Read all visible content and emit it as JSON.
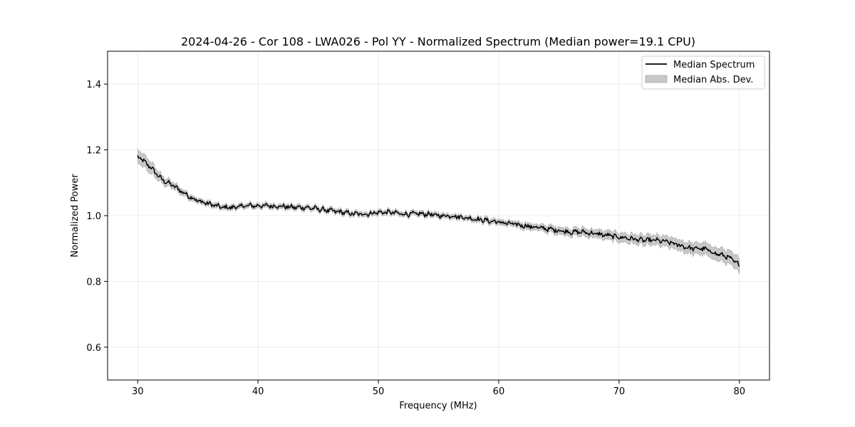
{
  "chart_data": {
    "type": "line",
    "title": "2024-04-26 - Cor 108 - LWA026 - Pol YY - Normalized Spectrum (Median power=19.1 CPU)",
    "xlabel": "Frequency (MHz)",
    "ylabel": "Normalized Power",
    "xlim": [
      27.5,
      82.5
    ],
    "ylim": [
      0.5,
      1.5
    ],
    "xticks": [
      30,
      40,
      50,
      60,
      70,
      80
    ],
    "yticks": [
      0.6,
      0.8,
      1.0,
      1.2,
      1.4
    ],
    "xtick_labels": [
      "30",
      "40",
      "50",
      "60",
      "70",
      "80"
    ],
    "ytick_labels": [
      "0.6",
      "0.8",
      "1.0",
      "1.2",
      "1.4"
    ],
    "grid": true,
    "legend_position": "top-right",
    "series": [
      {
        "name": "Median Spectrum",
        "kind": "line",
        "color": "#000000",
        "x": [
          30,
          31,
          32,
          33,
          34,
          35,
          36,
          37,
          38,
          39,
          40,
          41,
          42,
          43,
          44,
          45,
          46,
          47,
          48,
          49,
          50,
          51,
          52,
          53,
          54,
          55,
          56,
          57,
          58,
          59,
          60,
          61,
          62,
          63,
          64,
          65,
          66,
          67,
          68,
          69,
          70,
          71,
          72,
          73,
          74,
          75,
          76,
          77,
          78,
          79,
          80
        ],
        "values": [
          1.18,
          1.15,
          1.11,
          1.09,
          1.065,
          1.045,
          1.035,
          1.025,
          1.025,
          1.03,
          1.03,
          1.03,
          1.028,
          1.025,
          1.025,
          1.02,
          1.015,
          1.01,
          1.005,
          1.005,
          1.01,
          1.01,
          1.005,
          1.005,
          1.005,
          1.0,
          1.0,
          0.995,
          0.99,
          0.985,
          0.98,
          0.975,
          0.97,
          0.965,
          0.96,
          0.955,
          0.95,
          0.95,
          0.945,
          0.94,
          0.935,
          0.93,
          0.925,
          0.925,
          0.92,
          0.91,
          0.9,
          0.9,
          0.885,
          0.875,
          0.85
        ]
      },
      {
        "name": "Median Abs. Dev.",
        "kind": "band",
        "color": "#c8c8c8",
        "x": [
          30,
          31,
          32,
          33,
          34,
          35,
          36,
          37,
          38,
          39,
          40,
          41,
          42,
          43,
          44,
          45,
          46,
          47,
          48,
          49,
          50,
          51,
          52,
          53,
          54,
          55,
          56,
          57,
          58,
          59,
          60,
          61,
          62,
          63,
          64,
          65,
          66,
          67,
          68,
          69,
          70,
          71,
          72,
          73,
          74,
          75,
          76,
          77,
          78,
          79,
          80
        ],
        "half_width": [
          0.02,
          0.018,
          0.012,
          0.01,
          0.008,
          0.007,
          0.007,
          0.007,
          0.007,
          0.007,
          0.007,
          0.007,
          0.007,
          0.007,
          0.007,
          0.007,
          0.007,
          0.007,
          0.007,
          0.007,
          0.007,
          0.007,
          0.007,
          0.007,
          0.007,
          0.007,
          0.007,
          0.007,
          0.007,
          0.008,
          0.008,
          0.008,
          0.009,
          0.009,
          0.01,
          0.011,
          0.011,
          0.012,
          0.012,
          0.013,
          0.014,
          0.014,
          0.015,
          0.015,
          0.016,
          0.016,
          0.017,
          0.018,
          0.019,
          0.02,
          0.022
        ]
      }
    ]
  }
}
